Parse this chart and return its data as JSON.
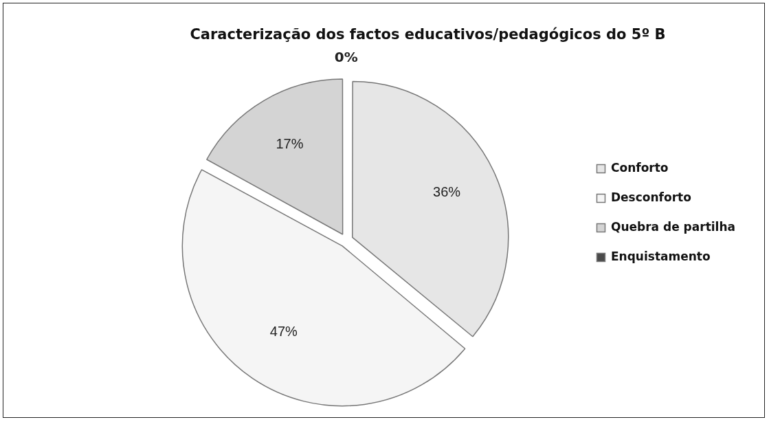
{
  "chart_data": {
    "type": "pie",
    "title": "Caracterização dos factos educativos/pedagógicos do 5º B",
    "categories": [
      "Conforto",
      "Desconforto",
      "Quebra de partilha",
      "Enquistamento"
    ],
    "values": [
      36,
      47,
      17,
      0
    ],
    "colors": [
      "#e6e6e6",
      "#f5f5f5",
      "#d4d4d4",
      "#4a4a4a"
    ],
    "value_labels": [
      "36%",
      "47%",
      "17%",
      "0%"
    ],
    "legend": "right"
  }
}
